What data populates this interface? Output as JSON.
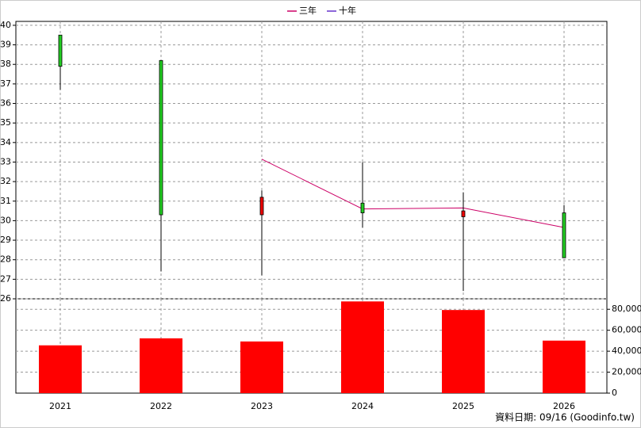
{
  "chart_data": {
    "type": "candlestick",
    "categories": [
      "2021",
      "2022",
      "2023",
      "2024",
      "2025",
      "2026"
    ],
    "open": [
      37.9,
      30.3,
      31.2,
      30.4,
      30.5,
      28.1
    ],
    "high": [
      39.5,
      38.2,
      31.55,
      33.0,
      31.45,
      30.8
    ],
    "low": [
      36.7,
      27.4,
      27.2,
      29.65,
      26.4,
      28.1
    ],
    "close": [
      39.5,
      38.2,
      30.3,
      30.9,
      30.2,
      30.4
    ],
    "up_color": "#22cc22",
    "down_color": "#ee0000",
    "ylim": [
      26,
      40.2
    ],
    "yticks": [
      26,
      27,
      28,
      29,
      30,
      31,
      32,
      33,
      34,
      35,
      36,
      37,
      38,
      39,
      40
    ],
    "series": [
      {
        "name": "三年",
        "color": "#cc0066",
        "values": [
          null,
          null,
          33.15,
          30.6,
          30.65,
          29.65
        ]
      },
      {
        "name": "十年",
        "color": "#6633cc",
        "values": [
          null,
          null,
          null,
          null,
          null,
          null
        ]
      }
    ],
    "volume": {
      "color": "#ff0000",
      "values": [
        45600,
        52300,
        49300,
        87500,
        79300,
        50100
      ]
    },
    "y2lim": [
      0,
      90000
    ],
    "y2ticks": [
      0,
      {
        "value": 20000,
        "label": "20,000"
      },
      {
        "value": 40000,
        "label": "40,000"
      },
      {
        "value": 60000,
        "label": "60,000"
      },
      {
        "value": 80000,
        "label": "80,000"
      }
    ],
    "grid": true,
    "footer": "資料日期: 09/16  (Goodinfo.tw)"
  }
}
